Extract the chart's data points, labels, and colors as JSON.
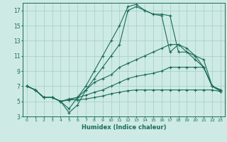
{
  "xlabel": "Humidex (Indice chaleur)",
  "ylabel": "",
  "xlim": [
    -0.5,
    23.5
  ],
  "ylim": [
    3,
    18
  ],
  "yticks": [
    3,
    5,
    7,
    9,
    11,
    13,
    15,
    17
  ],
  "xticks": [
    0,
    1,
    2,
    3,
    4,
    5,
    6,
    7,
    8,
    9,
    10,
    11,
    12,
    13,
    14,
    15,
    16,
    17,
    18,
    19,
    20,
    21,
    22,
    23
  ],
  "bg_color": "#ceeae4",
  "grid_color": "#a0cec8",
  "line_color": "#1a6b5a",
  "series": [
    [
      7.0,
      6.5,
      5.5,
      5.5,
      5.0,
      4.0,
      5.5,
      7.0,
      9.0,
      11.0,
      13.0,
      15.0,
      17.5,
      17.8,
      17.0,
      16.5,
      16.5,
      16.3,
      11.5,
      11.5,
      11.0,
      10.5,
      7.0,
      6.5
    ],
    [
      7.0,
      6.5,
      5.5,
      5.5,
      5.0,
      3.5,
      4.5,
      6.5,
      8.0,
      9.5,
      11.0,
      12.5,
      17.0,
      17.5,
      17.0,
      16.5,
      16.3,
      11.5,
      12.5,
      12.0,
      11.0,
      9.5,
      7.0,
      6.5
    ],
    [
      7.0,
      6.5,
      5.5,
      5.5,
      5.0,
      5.2,
      5.5,
      6.5,
      7.5,
      8.0,
      8.5,
      9.5,
      10.0,
      10.5,
      11.0,
      11.5,
      12.0,
      12.5,
      12.5,
      11.5,
      10.5,
      9.5,
      7.0,
      6.5
    ],
    [
      7.0,
      6.5,
      5.5,
      5.5,
      5.0,
      5.3,
      5.5,
      5.8,
      6.2,
      6.5,
      7.0,
      7.5,
      8.0,
      8.3,
      8.5,
      8.7,
      9.0,
      9.5,
      9.5,
      9.5,
      9.5,
      9.5,
      7.0,
      6.3
    ],
    [
      7.0,
      6.5,
      5.5,
      5.5,
      5.0,
      5.2,
      5.2,
      5.3,
      5.5,
      5.7,
      6.0,
      6.2,
      6.4,
      6.5,
      6.5,
      6.5,
      6.5,
      6.5,
      6.5,
      6.5,
      6.5,
      6.5,
      6.5,
      6.3
    ]
  ]
}
